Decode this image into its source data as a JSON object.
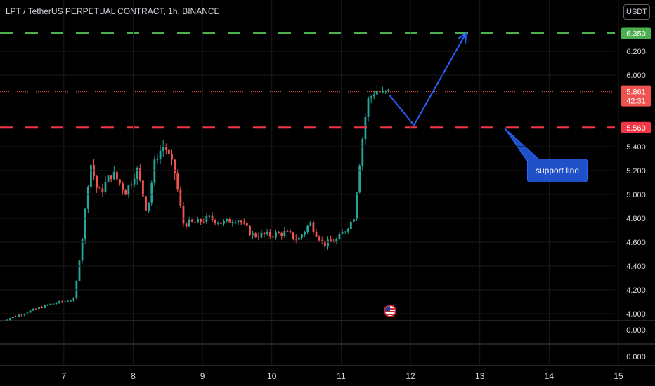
{
  "header": {
    "title": "LPT / TetherUS PERPETUAL CONTRACT, 1h, BINANCE",
    "currency": "USDT"
  },
  "colors": {
    "up": "#26a69a",
    "down": "#ef5350",
    "target_line": "#4caf50",
    "support_line": "#f23645",
    "arrow": "#2962ff",
    "grid": "#1a1a1a"
  },
  "annotation": {
    "text": "support line"
  },
  "events": {
    "flag_icon": "us-flag-icon"
  },
  "chart_data": {
    "type": "candlestick",
    "x_axis": {
      "ticks": [
        {
          "label": "7",
          "t": 7.0
        },
        {
          "label": "8",
          "t": 8.0
        },
        {
          "label": "9",
          "t": 9.0
        },
        {
          "label": "10",
          "t": 10.0
        },
        {
          "label": "11",
          "t": 11.0
        },
        {
          "label": "12",
          "t": 12.0
        },
        {
          "label": "13",
          "t": 13.0
        },
        {
          "label": "14",
          "t": 14.0
        },
        {
          "label": "15",
          "t": 15.0
        }
      ]
    },
    "y_axis": {
      "ticks": [
        "4.000",
        "4.200",
        "4.400",
        "4.600",
        "4.800",
        "5.000",
        "5.200",
        "5.400",
        "6.000",
        "6.200"
      ],
      "range": [
        3.94,
        6.42
      ]
    },
    "sub_pane_labels": [
      "0.000",
      "0.000"
    ],
    "levels": [
      {
        "name": "target",
        "value": 6.35,
        "label": "6.350",
        "color": "#4caf50"
      },
      {
        "name": "support",
        "value": 5.56,
        "label": "5.560",
        "color": "#f23645"
      }
    ],
    "last_price": {
      "value": 5.861,
      "label": "5.861",
      "countdown": "42:31"
    },
    "projection_path": [
      {
        "t": 11.7,
        "price": 5.83
      },
      {
        "t": 12.05,
        "price": 5.58
      },
      {
        "t": 12.8,
        "price": 6.35
      }
    ],
    "support_callout_anchor": {
      "t": 13.35,
      "price": 5.56
    },
    "anchors": [
      {
        "t": 6.1,
        "price": 3.94
      },
      {
        "t": 6.5,
        "price": 4.02
      },
      {
        "t": 6.8,
        "price": 4.08
      },
      {
        "t": 7.15,
        "price": 4.12
      },
      {
        "t": 7.28,
        "price": 4.7
      },
      {
        "t": 7.38,
        "price": 5.28
      },
      {
        "t": 7.5,
        "price": 5.0
      },
      {
        "t": 7.7,
        "price": 5.18
      },
      {
        "t": 7.9,
        "price": 5.02
      },
      {
        "t": 8.05,
        "price": 5.22
      },
      {
        "t": 8.2,
        "price": 4.85
      },
      {
        "t": 8.32,
        "price": 5.3
      },
      {
        "t": 8.45,
        "price": 5.42
      },
      {
        "t": 8.6,
        "price": 5.18
      },
      {
        "t": 8.72,
        "price": 4.76
      },
      {
        "t": 8.9,
        "price": 4.76
      },
      {
        "t": 9.1,
        "price": 4.8
      },
      {
        "t": 9.3,
        "price": 4.76
      },
      {
        "t": 9.5,
        "price": 4.8
      },
      {
        "t": 9.72,
        "price": 4.66
      },
      {
        "t": 10.0,
        "price": 4.66
      },
      {
        "t": 10.2,
        "price": 4.68
      },
      {
        "t": 10.38,
        "price": 4.62
      },
      {
        "t": 10.55,
        "price": 4.76
      },
      {
        "t": 10.75,
        "price": 4.58
      },
      {
        "t": 10.95,
        "price": 4.62
      },
      {
        "t": 11.18,
        "price": 4.8
      },
      {
        "t": 11.28,
        "price": 5.35
      },
      {
        "t": 11.38,
        "price": 5.78
      },
      {
        "t": 11.5,
        "price": 5.88
      },
      {
        "t": 11.6,
        "price": 5.84
      },
      {
        "t": 11.7,
        "price": 5.86
      }
    ]
  }
}
